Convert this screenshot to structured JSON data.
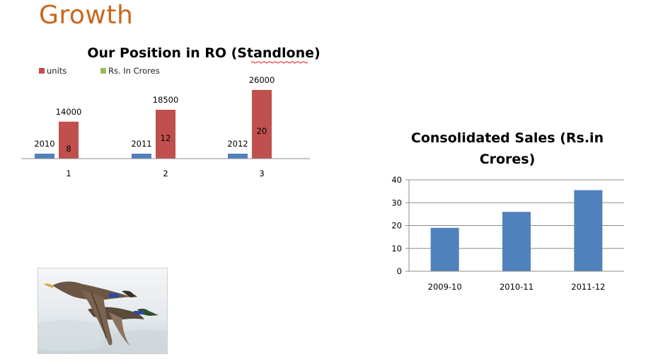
{
  "slide": {
    "title": "Growth"
  },
  "colors": {
    "units": "#c0504d",
    "rs": "#9bbb59",
    "blue": "#4f81bd",
    "title": "#c9671c"
  },
  "chart_data": [
    {
      "type": "bar",
      "title": "Our Position in RO (Standlone)",
      "categories": [
        "1",
        "2",
        "3"
      ],
      "legend": [
        "units",
        "Rs. In Crores"
      ],
      "legend_position": "top-left",
      "series": [
        {
          "values": [
            2010,
            2011,
            2012
          ],
          "labels": [
            "2010",
            "2011",
            "2012"
          ]
        },
        {
          "name": "units",
          "values": [
            14000,
            18500,
            26000
          ],
          "labels": [
            "14000",
            "18500",
            "26000"
          ]
        },
        {
          "name": "Rs. In Crores",
          "values": [
            8,
            12,
            20
          ],
          "labels": [
            "8",
            "12",
            "20"
          ]
        }
      ],
      "grid": false
    },
    {
      "type": "bar",
      "title": "Consolidated Sales  (Rs.in Crores)",
      "title_lines": [
        "Consolidated Sales  (Rs.in",
        "Crores)"
      ],
      "categories": [
        "2009-10",
        "2010-11",
        "2011-12"
      ],
      "values": [
        19,
        26,
        35.5
      ],
      "ylim": [
        0,
        40
      ],
      "yticks": [
        "0",
        "10",
        "20",
        "30",
        "40"
      ],
      "grid": true
    }
  ],
  "photo": {
    "icon": "flying-ducks-photo"
  }
}
